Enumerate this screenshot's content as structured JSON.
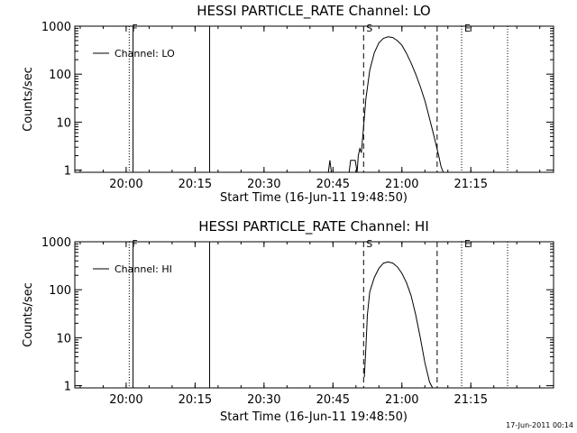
{
  "footer": {
    "stamp": "17-Jun-2011 00:14"
  },
  "chart_data": [
    {
      "type": "line",
      "title": "HESSI PARTICLE_RATE Channel: LO",
      "xlabel": "Start Time (16-Jun-11 19:48:50)",
      "ylabel": "Counts/sec",
      "yscale": "log",
      "ylim": [
        0.9,
        1000
      ],
      "xlim": [
        "19:48:50",
        "21:33:00"
      ],
      "x_ticks": [
        "20:00",
        "20:15",
        "20:30",
        "20:45",
        "21:00",
        "21:15"
      ],
      "y_ticks": [
        "1",
        "10",
        "100",
        "1000"
      ],
      "legend": {
        "placement": "top-left",
        "entries": [
          "Channel: LO"
        ]
      },
      "grid": false,
      "series": [
        {
          "name": "Channel: LO",
          "color": "#000000",
          "x": [
            "20:44:00",
            "20:44:20",
            "20:44:40",
            "20:45:00",
            "20:48:30",
            "20:48:50",
            "20:49:30",
            "20:49:50",
            "20:50:15",
            "20:50:30",
            "20:50:50",
            "20:51:10",
            "20:51:40",
            "20:52:10",
            "20:53:00",
            "20:54:00",
            "20:55:00",
            "20:56:00",
            "20:57:00",
            "20:58:00",
            "20:59:00",
            "21:00:00",
            "21:01:00",
            "21:02:00",
            "21:03:00",
            "21:04:00",
            "21:05:00",
            "21:06:00",
            "21:07:00",
            "21:08:00",
            "21:08:30",
            "21:09:00",
            "21:09:30"
          ],
          "y": [
            0.9,
            1.6,
            0.9,
            0.9,
            0.9,
            1.6,
            1.6,
            1.6,
            0.9,
            2.0,
            2.8,
            2.3,
            8,
            30,
            120,
            280,
            450,
            560,
            600,
            580,
            500,
            400,
            270,
            170,
            100,
            55,
            28,
            12,
            5,
            2,
            1.2,
            0.9,
            0.9
          ]
        }
      ],
      "markers": [
        {
          "time": "20:00:40",
          "style": "dotted",
          "label": "F"
        },
        {
          "time": "20:01:30",
          "style": "solid",
          "label": ""
        },
        {
          "time": "20:18:10",
          "style": "solid",
          "label": ""
        },
        {
          "time": "20:51:40",
          "style": "dashed",
          "label": "S"
        },
        {
          "time": "21:07:40",
          "style": "dashed",
          "label": ""
        },
        {
          "time": "21:13:00",
          "style": "dotted",
          "label": "E"
        },
        {
          "time": "21:23:00",
          "style": "dotted",
          "label": ""
        }
      ]
    },
    {
      "type": "line",
      "title": "HESSI PARTICLE_RATE Channel: HI",
      "xlabel": "Start Time (16-Jun-11 19:48:50)",
      "ylabel": "Counts/sec",
      "yscale": "log",
      "ylim": [
        0.9,
        1000
      ],
      "xlim": [
        "19:48:50",
        "21:33:00"
      ],
      "x_ticks": [
        "20:00",
        "20:15",
        "20:30",
        "20:45",
        "21:00",
        "21:15"
      ],
      "y_ticks": [
        "1",
        "10",
        "100",
        "1000"
      ],
      "legend": {
        "placement": "top-left",
        "entries": [
          "Channel: HI"
        ]
      },
      "grid": false,
      "series": [
        {
          "name": "Channel: HI",
          "color": "#000000",
          "x": [
            "20:51:50",
            "20:52:10",
            "20:52:30",
            "20:53:00",
            "20:54:00",
            "20:55:00",
            "20:56:00",
            "20:57:00",
            "20:58:00",
            "20:59:00",
            "21:00:00",
            "21:01:00",
            "21:02:00",
            "21:03:00",
            "21:04:00",
            "21:05:00",
            "21:06:00",
            "21:06:40"
          ],
          "y": [
            1.5,
            6,
            30,
            90,
            180,
            280,
            360,
            380,
            360,
            300,
            220,
            140,
            75,
            30,
            10,
            3,
            1.2,
            0.9
          ]
        }
      ],
      "markers": [
        {
          "time": "20:00:40",
          "style": "dotted",
          "label": "F"
        },
        {
          "time": "20:01:30",
          "style": "solid",
          "label": ""
        },
        {
          "time": "20:18:10",
          "style": "solid",
          "label": ""
        },
        {
          "time": "20:51:40",
          "style": "dashed",
          "label": "S"
        },
        {
          "time": "21:07:40",
          "style": "dashed",
          "label": ""
        },
        {
          "time": "21:13:00",
          "style": "dotted",
          "label": "E"
        },
        {
          "time": "21:23:00",
          "style": "dotted",
          "label": ""
        }
      ]
    }
  ]
}
